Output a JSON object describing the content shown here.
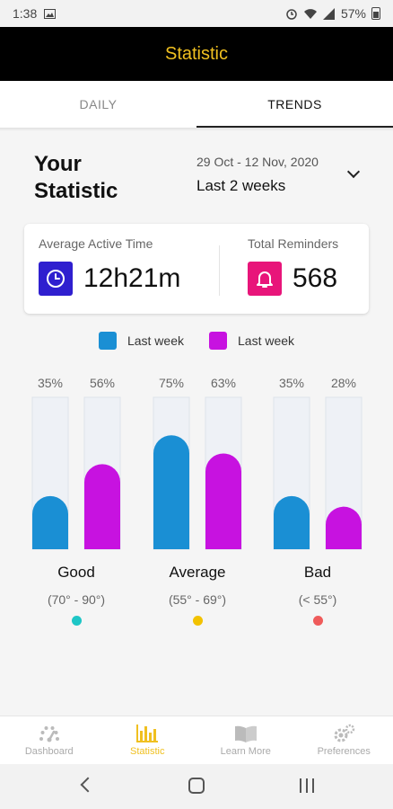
{
  "status_bar": {
    "time": "1:38",
    "battery": "57%"
  },
  "app_bar": {
    "title": "Statistic"
  },
  "tabs": [
    {
      "label": "DAILY",
      "active": false
    },
    {
      "label": "TRENDS",
      "active": true
    }
  ],
  "heading": {
    "line1": "Your",
    "line2": "Statistic"
  },
  "date_range": {
    "dates": "29 Oct - 12 Nov, 2020",
    "label": "Last 2 weeks"
  },
  "summary": {
    "active_time": {
      "label": "Average Active Time",
      "value": "12h21m",
      "icon": "clock-icon",
      "color": "#2f1fcf"
    },
    "reminders": {
      "label": "Total Reminders",
      "value": "568",
      "icon": "bell-icon",
      "color": "#e8157a"
    }
  },
  "legend": [
    {
      "label": "Last week",
      "color": "#1a8fd4"
    },
    {
      "label": "Last week",
      "color": "#c712e0"
    }
  ],
  "chart_data": {
    "type": "bar",
    "categories": [
      "Good",
      "Average",
      "Bad"
    ],
    "category_ranges": [
      "(70° - 90°)",
      "(55° - 69°)",
      "(< 55°)"
    ],
    "category_colors": [
      "#1ec6c6",
      "#f2c200",
      "#ef5b5b"
    ],
    "series": [
      {
        "name": "Last week",
        "color": "#1a8fd4",
        "values": [
          35,
          75,
          35
        ],
        "labels": [
          "35%",
          "75%",
          "35%"
        ]
      },
      {
        "name": "Last week",
        "color": "#c712e0",
        "values": [
          56,
          63,
          28
        ],
        "labels": [
          "56%",
          "63%",
          "28%"
        ]
      }
    ],
    "ylim": [
      0,
      100
    ]
  },
  "bottom_nav": [
    {
      "label": "Dashboard",
      "icon": "gauge-icon",
      "active": false
    },
    {
      "label": "Statistic",
      "icon": "bar-chart-icon",
      "active": true
    },
    {
      "label": "Learn More",
      "icon": "book-icon",
      "active": false
    },
    {
      "label": "Preferences",
      "icon": "gear-icon",
      "active": false
    }
  ]
}
